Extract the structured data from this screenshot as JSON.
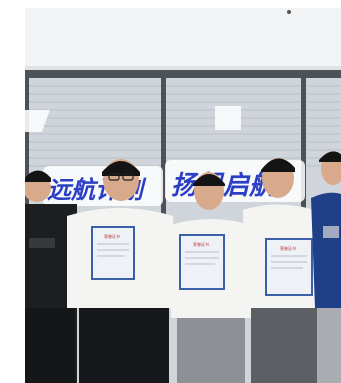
{
  "photo": {
    "subject": "group-photo",
    "banner_left": "远航计划",
    "banner_right": "扬帆启航",
    "certificate_heading": "荣誉证书",
    "colors": {
      "ceiling": "#f2f3f4",
      "wall": "#dfe3e6",
      "blinds": "#cfd5da",
      "frame": "#4d5257",
      "banner_blue": "#2a3fc4",
      "banner_glow": "#ffffff",
      "white_shirt": "#f4f4f2",
      "black_shirt": "#1d1e21",
      "navy_shirt": "#1f3f86",
      "grey_pants": "#8d9094",
      "skin": "#d9a98b",
      "hair": "#141414",
      "certificate_border": "#3b5fa8",
      "certificate_paper": "#eef2f7"
    }
  }
}
